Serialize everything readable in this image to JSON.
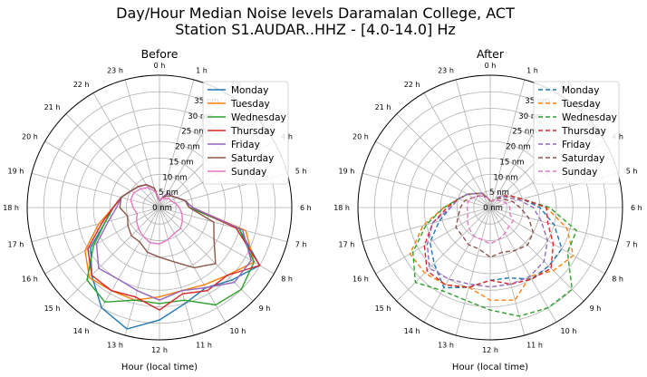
{
  "figure": {
    "title_line1": "Day/Hour Median Noise levels Daramalan College, ACT",
    "title_line2": "Station S1.AUDAR..HHZ - [4.0-14.0] Hz"
  },
  "chart_data": [
    {
      "type": "polar-line",
      "title": "Before",
      "xlabel": "Hour (local time)",
      "line_style": "solid",
      "radial_ticks": [
        "0 nm",
        "5 nm",
        "10 nm",
        "15 nm",
        "20 nm",
        "25 nm",
        "30 nm",
        "35 nm"
      ],
      "radial_values": [
        0,
        5,
        10,
        15,
        20,
        25,
        30,
        35
      ],
      "rmax": 40,
      "angular_ticks": [
        "0 h",
        "1 h",
        "2 h",
        "3 h",
        "4 h",
        "5 h",
        "6 h",
        "7 h",
        "8 h",
        "9 h",
        "10 h",
        "11 h",
        "12 h",
        "13 h",
        "14 h",
        "15 h",
        "16 h",
        "17 h",
        "18 h",
        "19 h",
        "20 h",
        "21 h",
        "22 h",
        "23 h"
      ],
      "grid": true,
      "legend_position": "top-right",
      "series": [
        {
          "name": "Monday",
          "color": "#1f77b4",
          "values": [
            2,
            3,
            5,
            5,
            6,
            8,
            10,
            25,
            35,
            31,
            28,
            30,
            34,
            38,
            35,
            29,
            24,
            17,
            14,
            12,
            10,
            9,
            8,
            6
          ]
        },
        {
          "name": "Tuesday",
          "color": "#ff7f0e",
          "values": [
            2,
            3,
            5,
            5,
            6,
            8,
            10,
            27,
            33,
            29,
            27,
            26,
            27,
            29,
            29,
            30,
            26,
            19,
            14,
            12,
            10,
            9,
            8,
            6
          ]
        },
        {
          "name": "Wednesday",
          "color": "#2ca02c",
          "values": [
            2,
            3,
            5,
            5,
            6,
            8,
            9,
            25,
            33,
            35,
            34,
            29,
            29,
            29,
            33,
            31,
            23,
            17,
            14,
            12,
            10,
            9,
            8,
            6
          ]
        },
        {
          "name": "Thursday",
          "color": "#d62728",
          "values": [
            2,
            3,
            5,
            5,
            6,
            8,
            10,
            24,
            35,
            29,
            29,
            27,
            31,
            28,
            29,
            29,
            25,
            18,
            14,
            12,
            10,
            9,
            8,
            6
          ]
        },
        {
          "name": "Friday",
          "color": "#9467bd",
          "values": [
            2,
            3,
            5,
            5,
            6,
            8,
            10,
            26,
            32,
            32,
            28,
            26,
            28,
            26,
            25,
            26,
            22,
            16,
            13,
            12,
            10,
            9,
            8,
            6
          ]
        },
        {
          "name": "Saturday",
          "color": "#8c564b",
          "values": [
            2,
            3,
            4,
            5,
            6,
            8,
            9,
            17,
            19,
            24,
            21,
            17,
            15,
            14,
            12,
            12,
            11,
            10,
            12,
            12,
            10,
            9,
            8,
            6
          ]
        },
        {
          "name": "Sunday",
          "color": "#e377c2",
          "values": [
            2,
            3,
            3,
            4,
            4,
            5,
            6,
            7,
            8,
            9,
            9,
            10,
            11,
            11,
            10,
            9,
            8,
            7,
            8,
            9,
            9,
            8,
            7,
            5
          ]
        }
      ]
    },
    {
      "type": "polar-line",
      "title": "After",
      "xlabel": "Hour (local time)",
      "line_style": "dashed",
      "radial_ticks": [
        "0 nm",
        "5 nm",
        "10 nm",
        "15 nm",
        "20 nm",
        "25 nm",
        "30 nm",
        "35 nm"
      ],
      "radial_values": [
        0,
        5,
        10,
        15,
        20,
        25,
        30,
        35
      ],
      "rmax": 40,
      "angular_ticks": [
        "0 h",
        "1 h",
        "2 h",
        "3 h",
        "4 h",
        "5 h",
        "6 h",
        "7 h",
        "8 h",
        "9 h",
        "10 h",
        "11 h",
        "12 h",
        "13 h",
        "14 h",
        "15 h",
        "16 h",
        "17 h",
        "18 h",
        "19 h",
        "20 h",
        "21 h",
        "22 h",
        "23 h"
      ],
      "grid": true,
      "legend_position": "top-right",
      "series": [
        {
          "name": "Monday",
          "color": "#1f77b4",
          "values": [
            2,
            2,
            3,
            5,
            7,
            10,
            15,
            20,
            25,
            25,
            25,
            22,
            22,
            25,
            28,
            24,
            21,
            16,
            12,
            10,
            8,
            6,
            5,
            3
          ]
        },
        {
          "name": "Tuesday",
          "color": "#ff7f0e",
          "values": [
            2,
            2,
            3,
            5,
            7,
            10,
            17,
            24,
            29,
            27,
            24,
            29,
            28,
            25,
            27,
            28,
            28,
            21,
            14,
            10,
            8,
            6,
            5,
            3
          ]
        },
        {
          "name": "Wednesday",
          "color": "#2ca02c",
          "values": [
            2,
            2,
            3,
            5,
            7,
            10,
            18,
            27,
            27,
            35,
            35,
            34,
            31,
            29,
            29,
            32,
            27,
            20,
            14,
            10,
            8,
            6,
            5,
            3
          ]
        },
        {
          "name": "Thursday",
          "color": "#d62728",
          "values": [
            2,
            2,
            3,
            5,
            7,
            10,
            17,
            18,
            22,
            26,
            25,
            24,
            22,
            25,
            27,
            27,
            23,
            18,
            13,
            10,
            8,
            6,
            5,
            3
          ]
        },
        {
          "name": "Friday",
          "color": "#9467bd",
          "values": [
            2,
            2,
            3,
            5,
            6,
            9,
            13,
            16,
            20,
            23,
            24,
            24,
            24,
            24,
            25,
            26,
            22,
            18,
            12,
            10,
            8,
            6,
            5,
            3
          ]
        },
        {
          "name": "Saturday",
          "color": "#8c564b",
          "values": [
            2,
            2,
            3,
            4,
            5,
            7,
            9,
            12,
            15,
            16,
            15,
            14,
            15,
            13,
            13,
            12,
            12,
            10,
            9,
            8,
            6,
            5,
            4,
            3
          ]
        },
        {
          "name": "Sunday",
          "color": "#e377c2",
          "values": [
            2,
            2,
            3,
            3,
            4,
            5,
            6,
            6,
            8,
            8,
            9,
            10,
            11,
            10,
            10,
            9,
            8,
            7,
            7,
            7,
            6,
            5,
            4,
            3
          ]
        }
      ]
    }
  ]
}
